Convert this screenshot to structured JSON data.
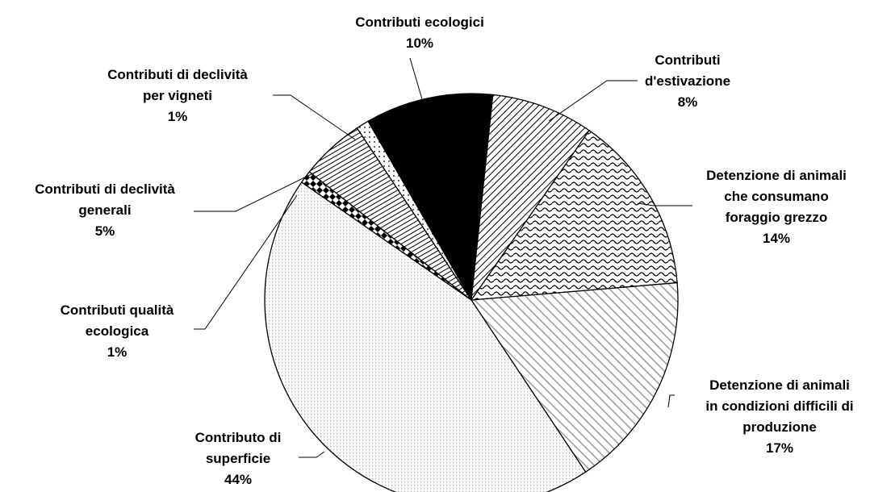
{
  "chart_data": {
    "type": "pie",
    "categories": [
      "Contributi ecologici",
      "Contributi\nd'estivazione",
      "Detenzione di animali\nche consumano\nforaggio grezzo",
      "Detenzione di animali\nin condizioni difficili di\nproduzione",
      "Contributo di\nsuperficie",
      "Contributi qualità\necologica",
      "Contributi di declività\ngenerali",
      "Contributi di declività\nper vigneti"
    ],
    "values": [
      10,
      8,
      14,
      17,
      44,
      1,
      5,
      1
    ],
    "value_labels": [
      "10%",
      "8%",
      "14%",
      "17%",
      "44%",
      "1%",
      "5%",
      "1%"
    ]
  }
}
